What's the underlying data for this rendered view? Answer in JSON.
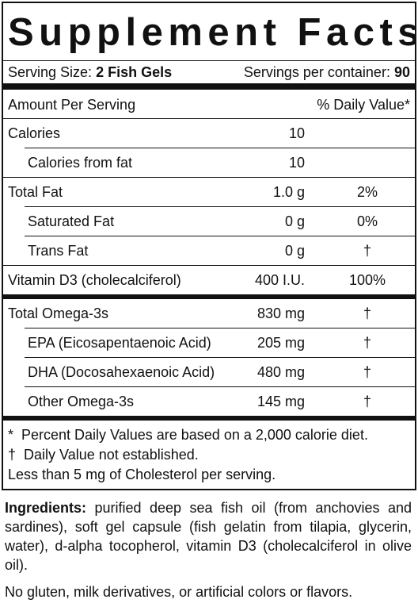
{
  "header": {
    "title": "Supplement Facts",
    "serving_size_label": "Serving Size:",
    "serving_size": "2 Fish Gels",
    "servings_label": "Servings per container:",
    "servings": "90"
  },
  "table": {
    "columns": [
      "Amount Per Serving",
      "% Daily Value*"
    ],
    "rows": [
      {
        "name": "Calories",
        "amount": "10"
      },
      {
        "name": "Calories from fat",
        "amount": "10",
        "indent": true
      },
      {
        "name": "Total Fat",
        "amount": "1.0 g",
        "dv": "2%"
      },
      {
        "name": "Saturated Fat",
        "amount": "0 g",
        "dv": "0%",
        "indent": true
      },
      {
        "name": "Trans Fat",
        "amount": "0 g",
        "dv": "†",
        "indent": true
      },
      {
        "name": "Vitamin D3 (cholecalciferol)",
        "amount": "400 I.U.",
        "dv": "100%",
        "section_end": true
      },
      {
        "name": "Total Omega-3s",
        "amount": "830 mg",
        "dv": "†"
      },
      {
        "name": "EPA (Eicosapentaenoic Acid)",
        "amount": "205 mg",
        "dv": "†",
        "indent": true
      },
      {
        "name": "DHA (Docosahexaenoic Acid)",
        "amount": "480 mg",
        "dv": "†",
        "indent": true
      },
      {
        "name": "Other Omega-3s",
        "amount": "145 mg",
        "dv": "†",
        "indent": true,
        "section_end": true
      }
    ]
  },
  "footnotes": [
    "*  Percent Daily Values are based on a 2,000 calorie diet.",
    "†  Daily Value not established.",
    "Less than 5 mg of Cholesterol per serving."
  ],
  "ingredients": {
    "label": "Ingredients:",
    "text": "purified deep sea fish oil (from anchovies and sardines), soft gel capsule (fish gelatin from tilapia, glycerin, water), d-alpha tocopherol, vitamin D3 (cholecalciferol in olive oil)."
  },
  "note": "No gluten, milk derivatives, or artificial colors or flavors."
}
